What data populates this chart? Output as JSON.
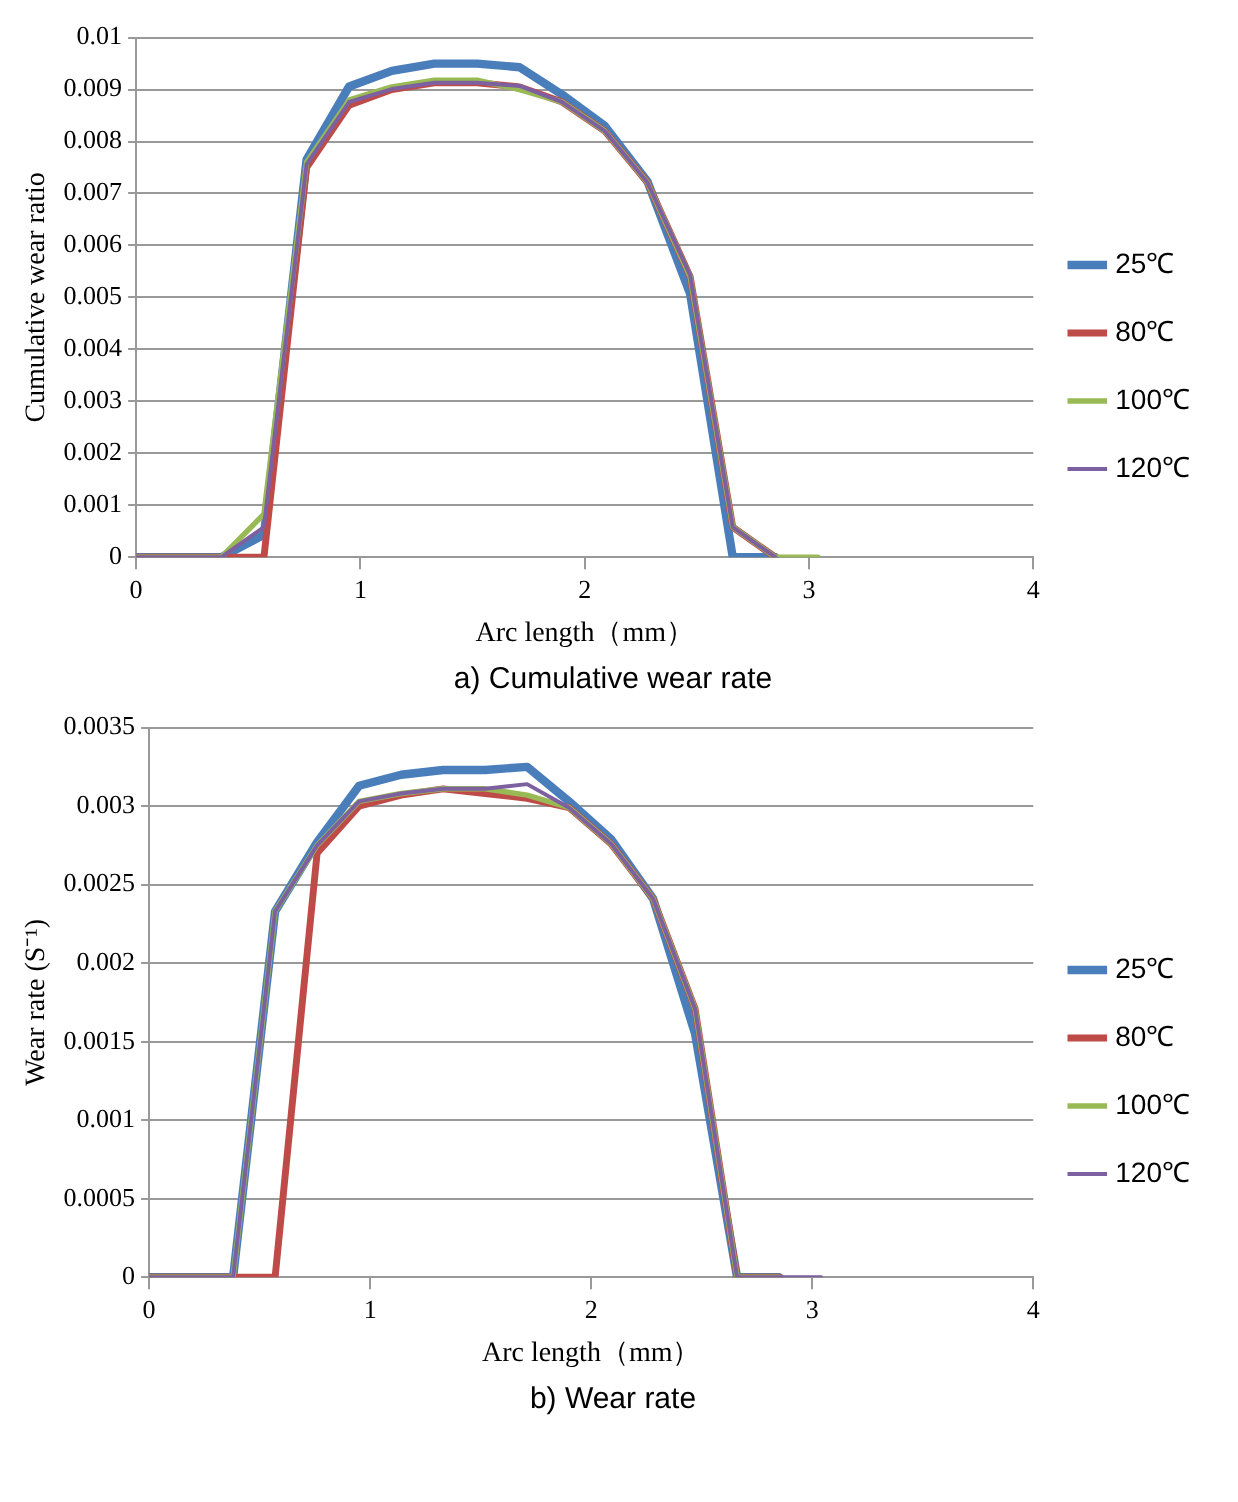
{
  "chart_data": [
    {
      "type": "line",
      "title": "a) Cumulative wear rate",
      "xlabel": "Arc length（mm）",
      "ylabel": "Cumulative wear ratio",
      "x": [
        0,
        0.19,
        0.38,
        0.57,
        0.76,
        0.95,
        1.14,
        1.33,
        1.52,
        1.71,
        1.9,
        2.09,
        2.28,
        2.47,
        2.66,
        2.85,
        3.04
      ],
      "xlim": [
        0,
        4
      ],
      "xticks": [
        0,
        1,
        2,
        3,
        4
      ],
      "ylim": [
        0,
        0.01
      ],
      "yticks": [
        0,
        0.001,
        0.002,
        0.003,
        0.004,
        0.005,
        0.006,
        0.007,
        0.008,
        0.009,
        0.01
      ],
      "grid": "y",
      "legend": "right",
      "marker": "none",
      "series": [
        {
          "name": "25℃",
          "color": "#4a7ebb",
          "values": [
            0,
            0,
            0,
            0.00043,
            0.00765,
            0.00906,
            0.00936,
            0.0095,
            0.0095,
            0.00943,
            0.0089,
            0.0083,
            0.00723,
            0.00507,
            0,
            0,
            null
          ]
        },
        {
          "name": "80℃",
          "color": "#be4b48",
          "values": [
            0,
            0,
            0,
            0,
            0.0075,
            0.0087,
            0.009,
            0.00913,
            0.00913,
            0.00905,
            0.00876,
            0.0082,
            0.00721,
            0.0054,
            0.00058,
            0,
            null
          ]
        },
        {
          "name": "100℃",
          "color": "#98b954",
          "values": [
            0,
            0,
            0,
            0.00083,
            0.0076,
            0.0088,
            0.00905,
            0.00918,
            0.00918,
            0.009,
            0.00876,
            0.0082,
            0.00721,
            0.0054,
            0.00058,
            0,
            0
          ]
        },
        {
          "name": "120℃",
          "color": "#7d60a0",
          "values": [
            0,
            0,
            0,
            0.00058,
            0.00756,
            0.00876,
            0.00901,
            0.00913,
            0.00913,
            0.00907,
            0.00876,
            0.0082,
            0.00721,
            0.00543,
            0.00058,
            0,
            null
          ]
        }
      ]
    },
    {
      "type": "line",
      "title": "b) Wear rate",
      "xlabel": "Arc length（mm）",
      "ylabel": "Wear rate (S⁻¹)",
      "x": [
        0,
        0.19,
        0.38,
        0.57,
        0.76,
        0.95,
        1.14,
        1.33,
        1.52,
        1.71,
        1.9,
        2.09,
        2.28,
        2.47,
        2.66,
        2.85,
        3.04
      ],
      "xlim": [
        0,
        4
      ],
      "xticks": [
        0,
        1,
        2,
        3,
        4
      ],
      "ylim": [
        0,
        0.0035
      ],
      "yticks": [
        0,
        0.0005,
        0.001,
        0.0015,
        0.002,
        0.0025,
        0.003,
        0.0035
      ],
      "grid": "y",
      "legend": "right",
      "marker": "none",
      "series": [
        {
          "name": "25℃",
          "color": "#4a7ebb",
          "values": [
            0,
            0,
            0,
            0.00233,
            0.00277,
            0.00313,
            0.0032,
            0.00323,
            0.00323,
            0.00325,
            0.00303,
            0.00279,
            0.00241,
            0.00155,
            0,
            0,
            null
          ]
        },
        {
          "name": "80℃",
          "color": "#be4b48",
          "values": [
            0,
            0,
            0,
            0,
            0.0027,
            0.003,
            0.00307,
            0.00311,
            0.00308,
            0.00305,
            0.00299,
            0.00276,
            0.00241,
            0.00171,
            0,
            0,
            null
          ]
        },
        {
          "name": "100℃",
          "color": "#98b954",
          "values": [
            0,
            0,
            0,
            0.00233,
            0.00275,
            0.00303,
            0.00308,
            0.00311,
            0.00311,
            0.00307,
            0.00299,
            0.00276,
            0.00241,
            0.00171,
            0,
            0,
            null
          ]
        },
        {
          "name": "120℃",
          "color": "#7d60a0",
          "values": [
            0,
            0,
            0,
            0.00233,
            0.00275,
            0.00303,
            0.00308,
            0.00311,
            0.00311,
            0.00314,
            0.00299,
            0.00276,
            0.00241,
            0.00171,
            0,
            0,
            0
          ]
        }
      ]
    }
  ]
}
